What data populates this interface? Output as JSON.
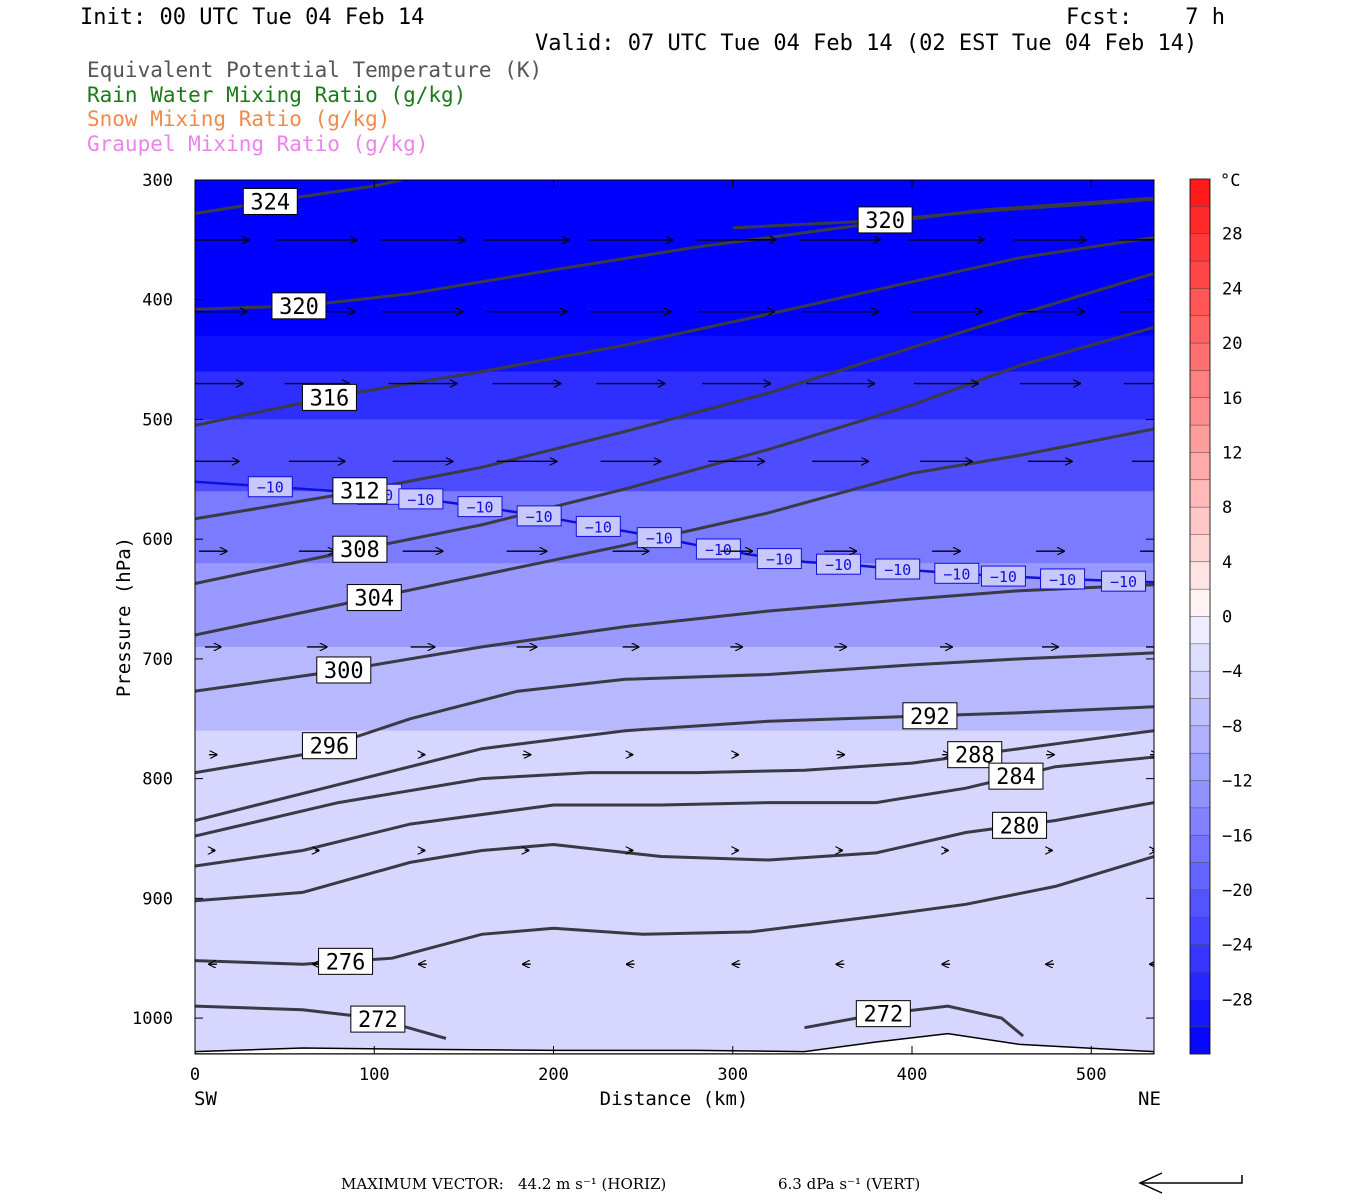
{
  "header": {
    "init": "Init: 00 UTC Tue 04 Feb 14",
    "fcst": "Fcst:    7 h",
    "valid": "Valid: 07 UTC Tue 04 Feb 14 (02 EST Tue 04 Feb 14)"
  },
  "legend": [
    {
      "label": "Equivalent Potential Temperature (K)",
      "color": "#555555"
    },
    {
      "label": "Rain Water Mixing Ratio (g/kg)",
      "color": "#1a7a1a"
    },
    {
      "label": "Snow Mixing Ratio (g/kg)",
      "color": "#f08a4b"
    },
    {
      "label": "Graupel Mixing Ratio (g/kg)",
      "color": "#ee82ee"
    }
  ],
  "footer": {
    "max_vector_label": "MAXIMUM VECTOR:",
    "horiz": "44.2 m s⁻¹ (HORIZ)",
    "vert": "6.3 dPa s⁻¹ (VERT)"
  },
  "chart_data": {
    "type": "heatmap",
    "xlabel": "Distance (km)",
    "ylabel": "Pressure (hPa)",
    "xlim": [
      0,
      535
    ],
    "ylim": [
      1030,
      300
    ],
    "x_ticks": [
      0,
      100,
      200,
      300,
      400,
      500
    ],
    "y_ticks": [
      300,
      400,
      500,
      600,
      700,
      800,
      900,
      1000
    ],
    "x_left_label": "SW",
    "x_right_label": "NE",
    "colorbar": {
      "unit": "°C",
      "ticks": [
        28,
        24,
        20,
        16,
        12,
        8,
        4,
        0,
        -4,
        -8,
        -12,
        -16,
        -20,
        -24,
        -28
      ],
      "levels": [
        -32,
        -30,
        -28,
        -26,
        -24,
        -22,
        -20,
        -18,
        -16,
        -14,
        -12,
        -10,
        -8,
        -6,
        -4,
        -2,
        0,
        2,
        4,
        6,
        8,
        10,
        12,
        14,
        16,
        18,
        20,
        22,
        24,
        26,
        28,
        30,
        32
      ]
    },
    "temperature_bands_c": [
      {
        "p": 300,
        "t": -32
      },
      {
        "p": 430,
        "t": -30
      },
      {
        "p": 460,
        "t": -26
      },
      {
        "p": 500,
        "t": -22
      },
      {
        "p": 560,
        "t": -16
      },
      {
        "p": 620,
        "t": -12
      },
      {
        "p": 690,
        "t": -8
      },
      {
        "p": 760,
        "t": -4
      },
      {
        "p": 1030,
        "t": -6
      }
    ],
    "isotherm_minus10": {
      "label": "−10",
      "x": [
        0,
        30,
        60,
        100,
        130,
        160,
        190,
        220,
        250,
        280,
        310,
        340,
        370,
        400,
        440,
        480,
        535
      ],
      "p": [
        552,
        555,
        558,
        562,
        567,
        573,
        580,
        588,
        596,
        605,
        613,
        619,
        622,
        626,
        630,
        633,
        636
      ],
      "label_x": [
        42,
        103,
        126,
        159,
        192,
        225,
        259,
        292,
        326,
        359,
        392,
        425,
        451,
        484,
        518
      ]
    },
    "theta_e_series": [
      {
        "level": 324,
        "x": [
          0,
          50,
          100,
          115
        ],
        "p": [
          328,
          316,
          305,
          300
        ],
        "label_x": 42
      },
      {
        "level": 320,
        "x": [
          0,
          60,
          120,
          200,
          280,
          360,
          440,
          535
        ],
        "p": [
          408,
          405,
          395,
          375,
          356,
          340,
          325,
          315
        ],
        "label_x": 58
      },
      {
        "level": 320,
        "x": [
          300,
          380,
          440,
          500,
          535
        ],
        "p": [
          340,
          334,
          326,
          320,
          316
        ],
        "label_x": 385
      },
      {
        "level": 316,
        "x": [
          0,
          80,
          160,
          240,
          320,
          400,
          460,
          535
        ],
        "p": [
          505,
          480,
          460,
          438,
          412,
          385,
          365,
          348
        ],
        "label_x": 75
      },
      {
        "level": 312,
        "x": [
          0,
          80,
          160,
          240,
          320,
          400,
          460,
          535
        ],
        "p": [
          583,
          563,
          540,
          510,
          478,
          440,
          412,
          378
        ],
        "label_x": 92
      },
      {
        "level": 308,
        "x": [
          0,
          80,
          160,
          240,
          320,
          400,
          460,
          535
        ],
        "p": [
          637,
          612,
          588,
          558,
          525,
          488,
          455,
          423
        ],
        "label_x": 92
      },
      {
        "level": 304,
        "x": [
          0,
          80,
          160,
          240,
          320,
          400,
          460,
          535
        ],
        "p": [
          680,
          655,
          630,
          605,
          578,
          545,
          530,
          508
        ],
        "label_x": 100
      },
      {
        "level": 300,
        "x": [
          0,
          80,
          160,
          240,
          320,
          400,
          460,
          535
        ],
        "p": [
          727,
          710,
          690,
          673,
          660,
          650,
          643,
          638
        ],
        "label_x": 83
      },
      {
        "level": 296,
        "x": [
          0,
          60,
          120,
          180,
          240,
          320,
          400,
          460,
          535
        ],
        "p": [
          795,
          780,
          750,
          727,
          717,
          713,
          705,
          700,
          695
        ],
        "label_x": 75
      },
      {
        "level": 292,
        "x": [
          0,
          80,
          160,
          240,
          320,
          400,
          460,
          535
        ],
        "p": [
          835,
          805,
          775,
          760,
          752,
          748,
          745,
          740
        ],
        "label_x": 410
      },
      {
        "level": 288,
        "x": [
          0,
          80,
          160,
          220,
          280,
          340,
          400,
          460,
          535
        ],
        "p": [
          848,
          820,
          800,
          795,
          795,
          793,
          787,
          775,
          760
        ],
        "label_x": 435
      },
      {
        "level": 284,
        "x": [
          0,
          60,
          120,
          200,
          260,
          320,
          380,
          430,
          480,
          535
        ],
        "p": [
          873,
          860,
          838,
          822,
          822,
          820,
          820,
          808,
          790,
          782
        ],
        "label_x": 458
      },
      {
        "level": 280,
        "x": [
          0,
          60,
          120,
          160,
          200,
          260,
          320,
          380,
          430,
          480,
          535
        ],
        "p": [
          902,
          895,
          870,
          860,
          855,
          865,
          868,
          862,
          845,
          835,
          820
        ],
        "label_x": 460
      },
      {
        "level": 276,
        "x": [
          0,
          60,
          110,
          160,
          200,
          250,
          310,
          380,
          430,
          480,
          535
        ],
        "p": [
          952,
          955,
          950,
          930,
          925,
          930,
          928,
          915,
          905,
          890,
          865
        ],
        "label_x": 84
      },
      {
        "level": 272,
        "x": [
          0,
          60,
          100,
          140
        ],
        "p": [
          990,
          993,
          1000,
          1017
        ],
        "label_x": 102
      },
      {
        "level": 272,
        "x": [
          340,
          380,
          420,
          450,
          462
        ],
        "p": [
          1008,
          997,
          990,
          1000,
          1015
        ],
        "label_x": 384
      }
    ],
    "surface": {
      "x": [
        0,
        60,
        120,
        200,
        280,
        340,
        380,
        420,
        460,
        535
      ],
      "p": [
        1028,
        1025,
        1026,
        1027,
        1027,
        1028,
        1020,
        1013,
        1022,
        1028
      ]
    },
    "wind_vectors": {
      "x": [
        10,
        68,
        127,
        185,
        243,
        302,
        360,
        419,
        477,
        535
      ],
      "rows": [
        {
          "p": 350,
          "u": [
            36,
            40,
            42,
            42,
            42,
            40,
            40,
            38,
            36,
            36
          ],
          "w": [
            0,
            0,
            0,
            0,
            0,
            0,
            0,
            0,
            0,
            0
          ]
        },
        {
          "p": 410,
          "u": [
            34,
            38,
            40,
            40,
            40,
            38,
            38,
            36,
            34,
            34
          ],
          "w": [
            0,
            0,
            0,
            0,
            0,
            0,
            0,
            0,
            0,
            0
          ]
        },
        {
          "p": 470,
          "u": [
            30,
            32,
            34,
            34,
            34,
            34,
            34,
            32,
            30,
            30
          ],
          "w": [
            0,
            0,
            0,
            0,
            0,
            0,
            0,
            0,
            0,
            0
          ]
        },
        {
          "p": 535,
          "u": [
            26,
            28,
            30,
            30,
            30,
            28,
            28,
            26,
            22,
            22
          ],
          "w": [
            0,
            0,
            0,
            0,
            0,
            0,
            0,
            0,
            0,
            0
          ]
        },
        {
          "p": 610,
          "u": [
            14,
            18,
            20,
            20,
            18,
            16,
            16,
            14,
            14,
            14
          ],
          "w": [
            0,
            0,
            0,
            0,
            0,
            0,
            0,
            0,
            0,
            0
          ]
        },
        {
          "p": 690,
          "u": [
            8,
            10,
            12,
            10,
            8,
            6,
            6,
            6,
            8,
            8
          ],
          "w": [
            0,
            0,
            0,
            0,
            0,
            0,
            0,
            0,
            0,
            0
          ]
        },
        {
          "p": 780,
          "u": [
            4,
            4,
            2,
            4,
            2,
            2,
            4,
            4,
            4,
            4
          ],
          "w": [
            0,
            0,
            0,
            0,
            0,
            0,
            0,
            0,
            0,
            0
          ]
        },
        {
          "p": 860,
          "u": [
            2,
            2,
            2,
            2,
            2,
            2,
            2,
            2,
            2,
            2
          ],
          "w": [
            0,
            0,
            0,
            0,
            0,
            0,
            0,
            0,
            0,
            0
          ]
        },
        {
          "p": 955,
          "u": [
            -4,
            -4,
            -4,
            -4,
            -4,
            -4,
            -4,
            -4,
            -4,
            -4
          ],
          "w": [
            0,
            0,
            0,
            0,
            0,
            0,
            0,
            0,
            0,
            0
          ]
        }
      ]
    }
  }
}
